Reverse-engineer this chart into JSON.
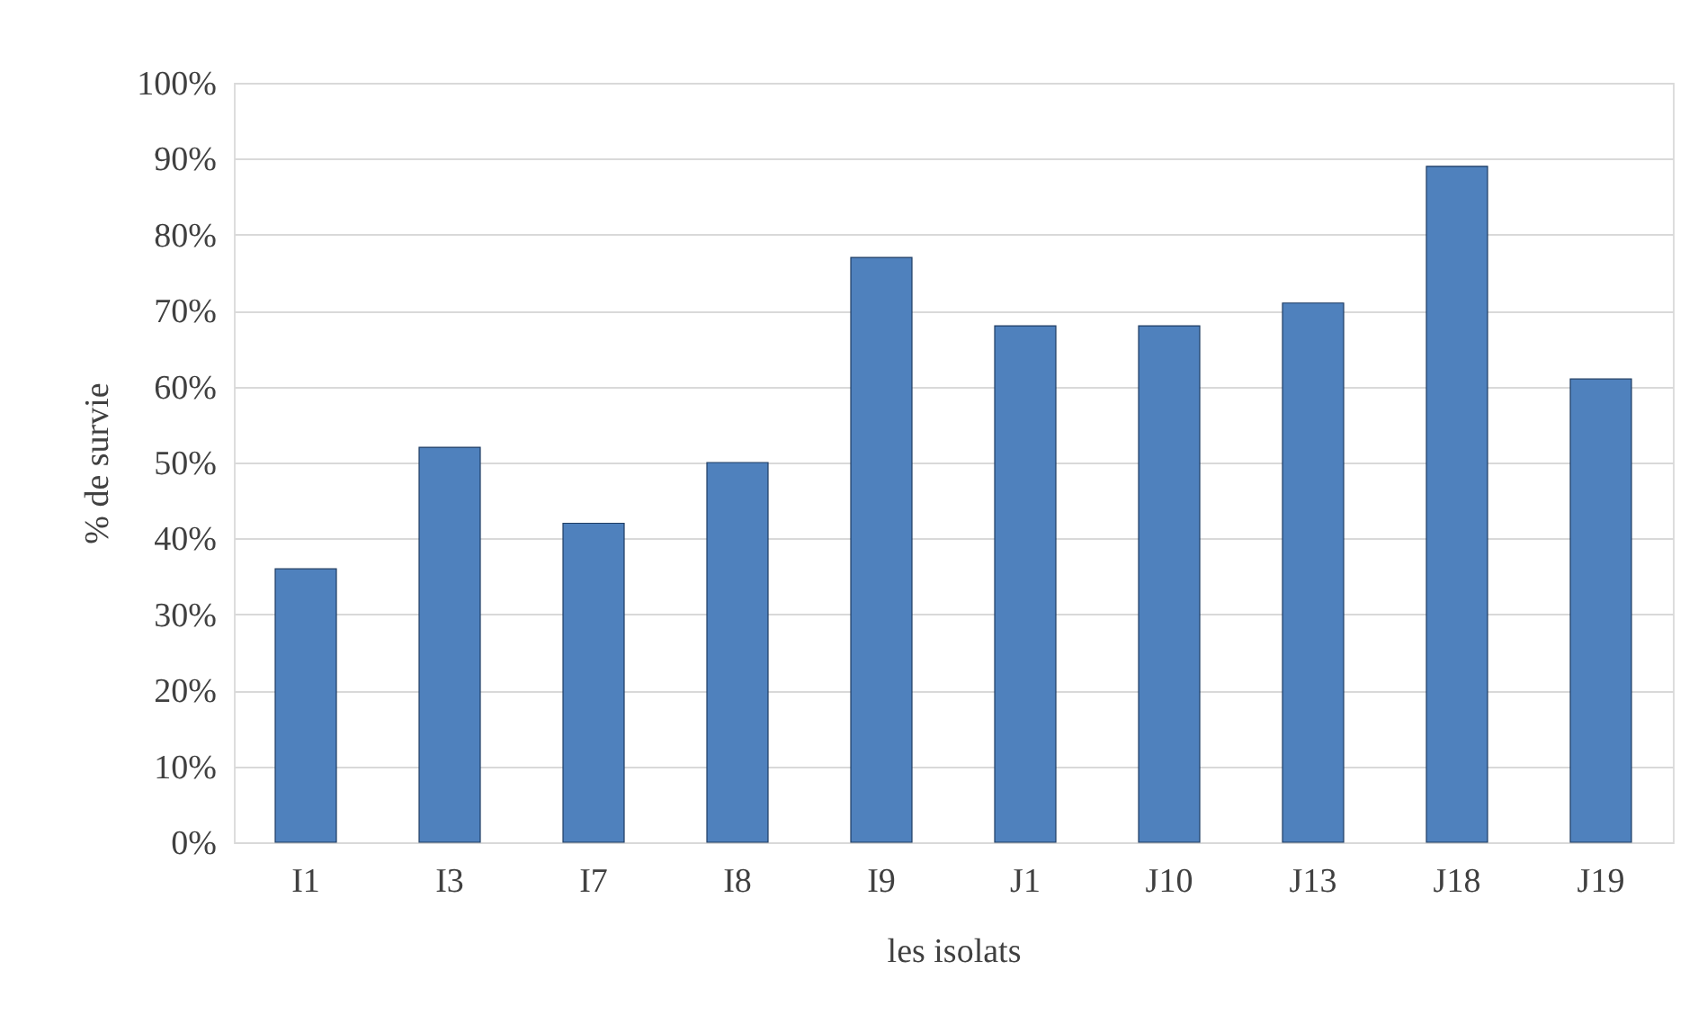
{
  "chart_data": {
    "type": "bar",
    "xlabel": "les isolats",
    "ylabel": "% de survie",
    "categories": [
      "I1",
      "I3",
      "I7",
      "I8",
      "I9",
      "J1",
      "J10",
      "J13",
      "J18",
      "J19"
    ],
    "values": [
      36,
      52,
      42,
      50,
      77,
      68,
      68,
      71,
      89,
      61
    ],
    "color": "#4f81bd",
    "ylim": [
      0,
      100
    ],
    "yticks": [
      {
        "value": 0,
        "label": "0%"
      },
      {
        "value": 10,
        "label": "10%"
      },
      {
        "value": 20,
        "label": "20%"
      },
      {
        "value": 30,
        "label": "30%"
      },
      {
        "value": 40,
        "label": "40%"
      },
      {
        "value": 50,
        "label": "50%"
      },
      {
        "value": 60,
        "label": "60%"
      },
      {
        "value": 70,
        "label": "70%"
      },
      {
        "value": 80,
        "label": "80%"
      },
      {
        "value": 90,
        "label": "90%"
      },
      {
        "value": 100,
        "label": "100%"
      }
    ],
    "grid": "y"
  }
}
